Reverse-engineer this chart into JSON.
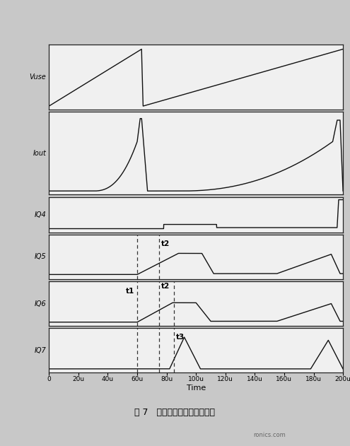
{
  "title_caption": "图 7   斜坡补偿电路的仿真波形",
  "xlabel": "Time",
  "x_ticks": [
    0,
    20,
    40,
    60,
    80,
    100,
    120,
    140,
    160,
    180,
    200
  ],
  "x_tick_labels": [
    "0",
    "20u",
    "40u",
    "60u",
    "80u",
    "100u",
    "120u",
    "140u",
    "160u",
    "180u",
    "200u"
  ],
  "xlim": [
    0,
    200
  ],
  "subplot_labels": [
    "Vuse",
    "Iout",
    "IQ4",
    "IQ5",
    "IQ6",
    "IQ7"
  ],
  "subplot_label_italic": [
    "Vuse",
    "Iout",
    "IQ4",
    "IQ5",
    "IQ6",
    "IQ7"
  ],
  "t1": 60,
  "t2": 75,
  "t3": 85,
  "bg_color": "#c8c8c8",
  "plot_bg": "#f0f0f0",
  "line_color": "#111111",
  "dashed_color": "#333333",
  "subplot_heights": [
    2.2,
    2.8,
    1.2,
    1.5,
    1.5,
    1.5
  ]
}
